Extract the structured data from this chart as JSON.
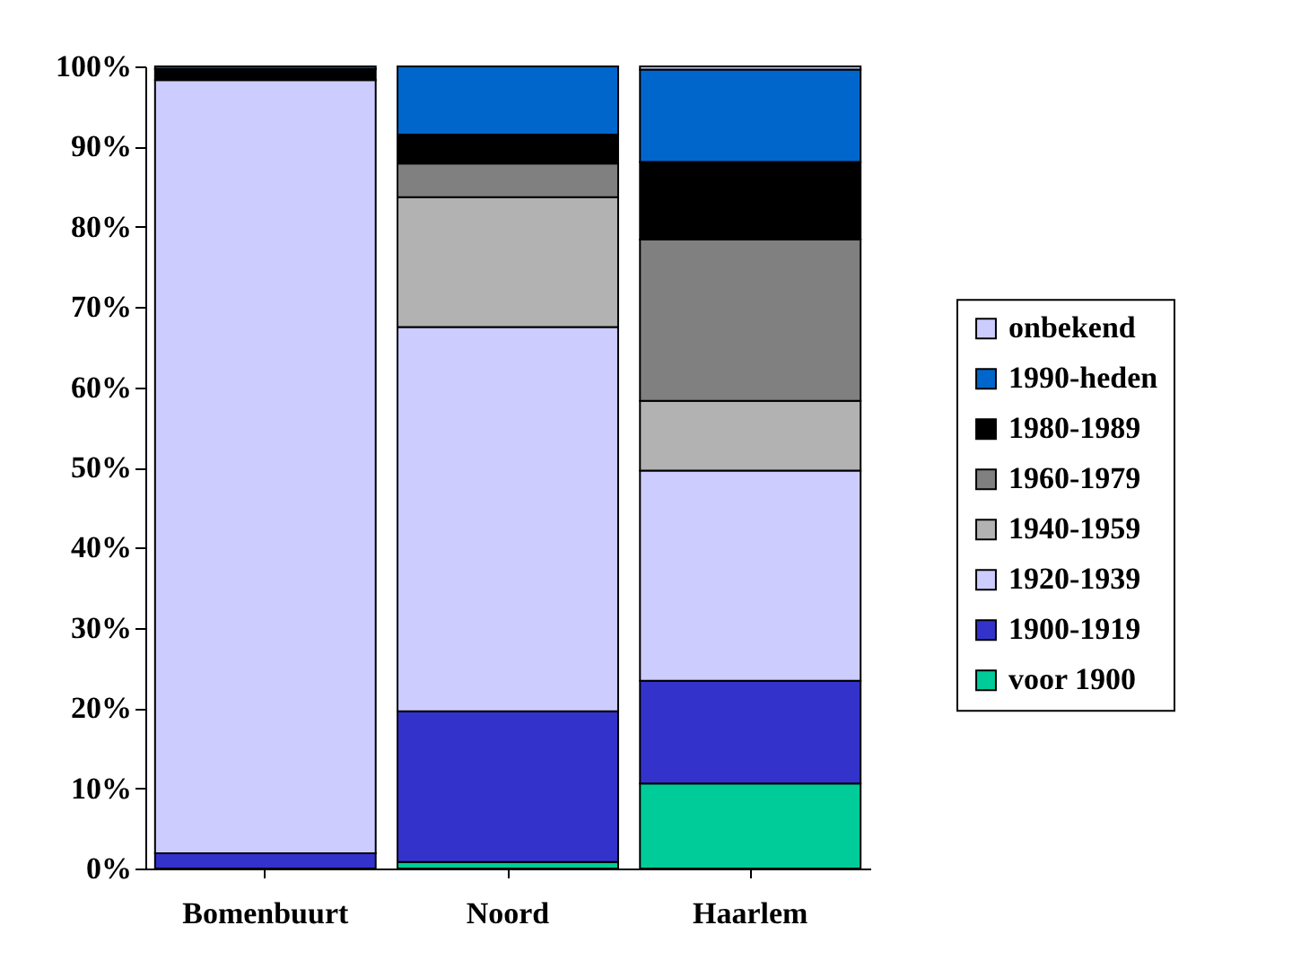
{
  "chart_data": {
    "type": "bar",
    "stacked": true,
    "categories": [
      "Bomenbuurt",
      "Noord",
      "Haarlem"
    ],
    "ylim": [
      0,
      100
    ],
    "yticks": [
      {
        "value": 0,
        "label": "0%"
      },
      {
        "value": 10,
        "label": "10%"
      },
      {
        "value": 20,
        "label": "20%"
      },
      {
        "value": 30,
        "label": "30%"
      },
      {
        "value": 40,
        "label": "40%"
      },
      {
        "value": 50,
        "label": "50%"
      },
      {
        "value": 60,
        "label": "60%"
      },
      {
        "value": 70,
        "label": "70%"
      },
      {
        "value": 80,
        "label": "80%"
      },
      {
        "value": 90,
        "label": "90%"
      },
      {
        "value": 100,
        "label": "100%"
      }
    ],
    "grid": false,
    "legend": "right",
    "series": [
      {
        "name": "voor 1900",
        "color": "#00cc99",
        "values": [
          0,
          0.8,
          10.6
        ]
      },
      {
        "name": "1900-1919",
        "color": "#3333cc",
        "values": [
          1.9,
          18.8,
          12.8
        ]
      },
      {
        "name": "1920-1939",
        "color": "#ccccff",
        "values": [
          96.4,
          47.9,
          26.2
        ]
      },
      {
        "name": "1940-1959",
        "color": "#b2b2b2",
        "values": [
          0,
          16.2,
          8.7
        ]
      },
      {
        "name": "1960-1979",
        "color": "#808080",
        "values": [
          0,
          4.2,
          20.1
        ]
      },
      {
        "name": "1980-1989",
        "color": "#000000",
        "values": [
          1.4,
          3.6,
          9.7
        ]
      },
      {
        "name": "1990-heden",
        "color": "#0066cc",
        "values": [
          0.3,
          8.5,
          11.5
        ]
      },
      {
        "name": "onbekend",
        "color": "#ccccff",
        "values": [
          0,
          0,
          0.4
        ]
      }
    ]
  }
}
